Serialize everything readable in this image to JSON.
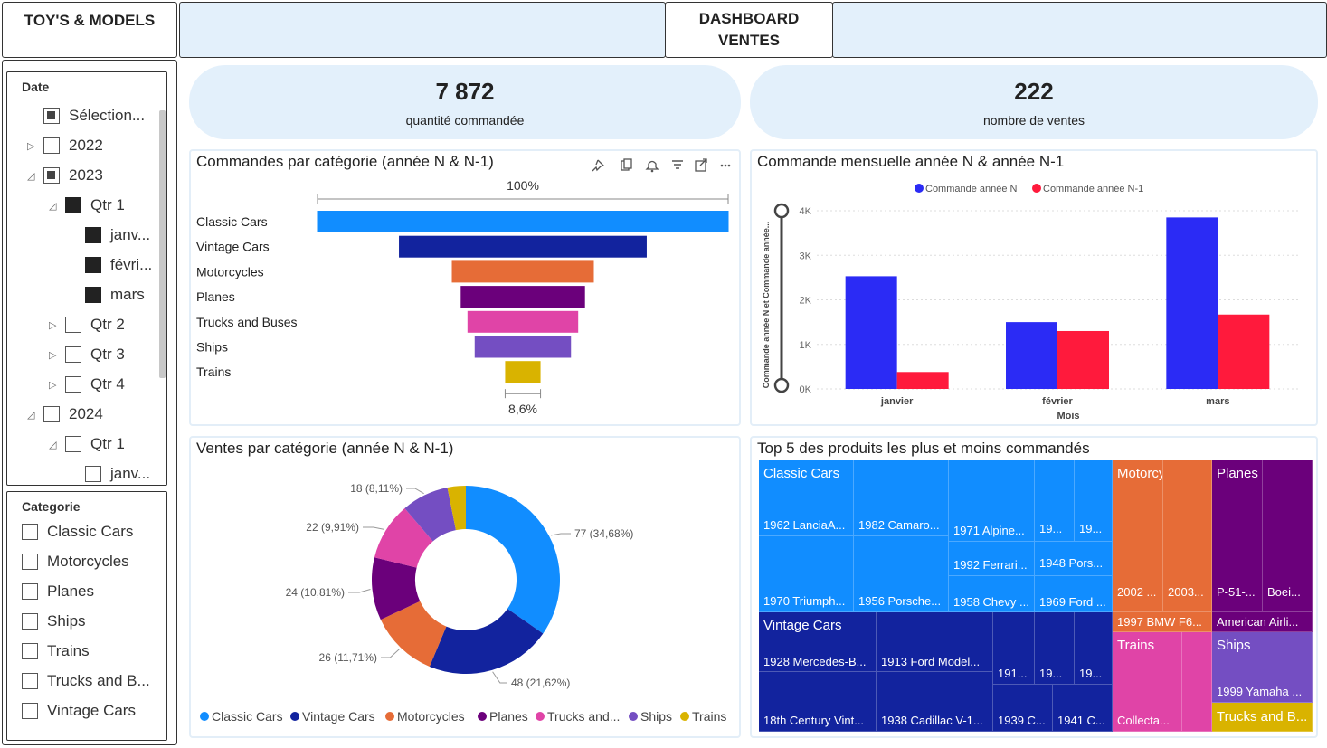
{
  "header": {
    "brand": "TOY'S & MODELS",
    "title_line1": "DASHBOARD",
    "title_line2": "VENTES"
  },
  "slicer_date": {
    "title": "Date",
    "items": [
      {
        "label": "Sélection...",
        "state": "partial",
        "level": 1,
        "expand": ""
      },
      {
        "label": "2022",
        "state": "none",
        "level": 1,
        "expand": "▷"
      },
      {
        "label": "2023",
        "state": "partial",
        "level": 1,
        "expand": "◿"
      },
      {
        "label": "Qtr 1",
        "state": "full",
        "level": 2,
        "expand": "◿"
      },
      {
        "label": "janv...",
        "state": "full",
        "level": 3,
        "expand": ""
      },
      {
        "label": "févri...",
        "state": "full",
        "level": 3,
        "expand": ""
      },
      {
        "label": "mars",
        "state": "full",
        "level": 3,
        "expand": ""
      },
      {
        "label": "Qtr 2",
        "state": "none",
        "level": 2,
        "expand": "▷"
      },
      {
        "label": "Qtr 3",
        "state": "none",
        "level": 2,
        "expand": "▷"
      },
      {
        "label": "Qtr 4",
        "state": "none",
        "level": 2,
        "expand": "▷"
      },
      {
        "label": "2024",
        "state": "none",
        "level": 1,
        "expand": "◿"
      },
      {
        "label": "Qtr 1",
        "state": "none",
        "level": 2,
        "expand": "◿"
      },
      {
        "label": "janv...",
        "state": "none",
        "level": 3,
        "expand": ""
      }
    ]
  },
  "slicer_category": {
    "title": "Categorie",
    "items": [
      "Classic Cars",
      "Motorcycles",
      "Planes",
      "Ships",
      "Trains",
      "Trucks and B...",
      "Vintage Cars"
    ]
  },
  "kpis": [
    {
      "value": "7 872",
      "label": "quantité commandée"
    },
    {
      "value": "222",
      "label": "nombre de ventes"
    }
  ],
  "funnel": {
    "title": "Commandes par catégorie (année N & N-1)",
    "top_label": "100%",
    "bottom_label": "8,6%",
    "chart_data": {
      "type": "bar",
      "categories": [
        "Classic Cars",
        "Vintage Cars",
        "Motorcycles",
        "Planes",
        "Trucks and Buses",
        "Ships",
        "Trains"
      ],
      "values": [
        100,
        60.2,
        34.5,
        30.2,
        26.9,
        23.4,
        8.6
      ],
      "colors": [
        "#118dff",
        "#12239e",
        "#e66c37",
        "#6b007b",
        "#e044a7",
        "#744ec2",
        "#d9b300"
      ]
    }
  },
  "monthly": {
    "title": "Commande mensuelle année N & année N-1",
    "chart_data": {
      "type": "bar",
      "categories": [
        "janvier",
        "février",
        "mars"
      ],
      "series": [
        {
          "name": "Commande année N",
          "values": [
            2530,
            1500,
            3850
          ],
          "color": "#2b2bf5"
        },
        {
          "name": "Commande année N-1",
          "values": [
            380,
            1300,
            1670
          ],
          "color": "#ff1a3c"
        }
      ],
      "xlabel": "Mois",
      "ylabel": "Commande année N et Commande année...",
      "ylim": [
        0,
        4000
      ],
      "yticks": [
        "0K",
        "1K",
        "2K",
        "3K",
        "4K"
      ],
      "legend": "top"
    }
  },
  "donut": {
    "title": "Ventes par catégorie (année N & N-1)",
    "chart_data": {
      "type": "pie",
      "slices": [
        {
          "name": "Classic Cars",
          "value": 77,
          "label": "77 (34,68%)",
          "color": "#118dff"
        },
        {
          "name": "Vintage Cars",
          "value": 48,
          "label": "48 (21,62%)",
          "color": "#12239e"
        },
        {
          "name": "Motorcycles",
          "value": 26,
          "label": "26 (11,71%)",
          "color": "#e66c37"
        },
        {
          "name": "Planes",
          "value": 24,
          "label": "24 (10,81%)",
          "color": "#6b007b"
        },
        {
          "name": "Trucks and...",
          "value": 22,
          "label": "22 (9,91%)",
          "color": "#e044a7"
        },
        {
          "name": "Ships",
          "value": 18,
          "label": "18 (8,11%)",
          "color": "#744ec2"
        },
        {
          "name": "Trains",
          "value": 7,
          "label": "",
          "color": "#d9b300"
        }
      ],
      "legend": "bottom"
    }
  },
  "treemap": {
    "title": "Top 5 des produits les plus et moins commandés",
    "classic_cars": "Classic Cars",
    "vintage_cars": "Vintage Cars",
    "motorcycles": "Motorcycles",
    "planes": "Planes",
    "trains": "Trains",
    "ships": "Ships",
    "trucks": "Trucks and B...",
    "cc_1": "1962 LanciaA...",
    "cc_2": "1982 Camaro...",
    "cc_3": "1971 Alpine...",
    "cc_4": "19...",
    "cc_5": "19...",
    "cc_6": "1992 Ferrari...",
    "cc_7": "1948 Pors...",
    "cc_8": "1970 Triumph...",
    "cc_9": "1956 Porsche...",
    "cc_10": "1958 Chevy ...",
    "cc_11": "1969 Ford ...",
    "vc_1": "1928 Mercedes-B...",
    "vc_2": "1913 Ford Model...",
    "vc_3": "191...",
    "vc_4": "19...",
    "vc_5": "19...",
    "vc_6": "18th Century Vint...",
    "vc_7": "1938 Cadillac V-1...",
    "vc_8": "1939 C...",
    "vc_9": "1941 C...",
    "mc_1": "2002 ...",
    "mc_2": "2003...",
    "mc_3": "1997 BMW F6...",
    "pl_1": "P-51-...",
    "pl_2": "Boei...",
    "pl_3": "American Airli...",
    "tr_1": "Collecta...",
    "sh_1": "1999 Yamaha ..."
  }
}
